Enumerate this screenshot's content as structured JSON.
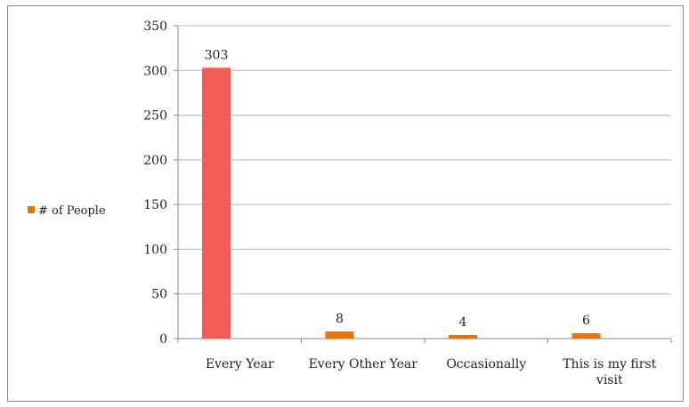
{
  "chart_data": {
    "type": "bar",
    "categories": [
      "Every Year",
      "Every Other Year",
      "Occasionally",
      "This is my first visit"
    ],
    "category_label_lines": [
      [
        "Every Year"
      ],
      [
        "Every Other Year"
      ],
      [
        "Occasionally"
      ],
      [
        "This is my first",
        "visit"
      ]
    ],
    "series": [
      {
        "name": "# of People",
        "values": [
          303,
          8,
          4,
          6
        ],
        "color": "#e8720c",
        "point_colors": [
          "#f25c54",
          "#e8720c",
          "#e8720c",
          "#e8720c"
        ]
      }
    ],
    "data_labels": [
      "303",
      "8",
      "4",
      "6"
    ],
    "ylim": [
      0,
      350
    ],
    "yticks": [
      0,
      50,
      100,
      150,
      200,
      250,
      300,
      350
    ],
    "grid": true,
    "legend_position": "left",
    "title": "",
    "xlabel": "",
    "ylabel": ""
  }
}
